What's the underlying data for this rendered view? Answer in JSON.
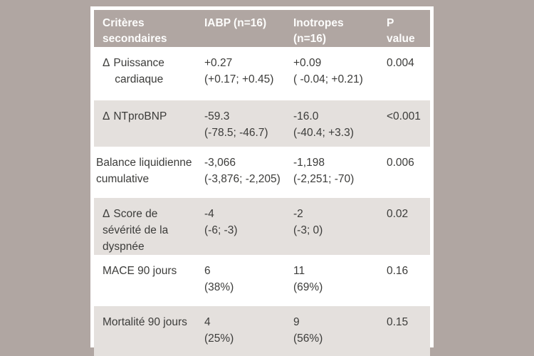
{
  "colors": {
    "page_background": "#b0a6a2",
    "card_background": "#ffffff",
    "header_background": "#b0a6a2",
    "shaded_row_background": "#e4e0dd",
    "body_text": "#3c3c3a",
    "header_text": "#ffffff"
  },
  "table": {
    "header": {
      "criteria": "Critères\nsecondaires",
      "iabp": "IABP (n=16)",
      "inotropes": "Inotropes\n(n=16)",
      "p_value": "P\nvalue"
    },
    "rows": [
      {
        "delta": "Δ",
        "label": "Puissance\n    cardiaque",
        "iabp": "+0.27\n(+0.17; +0.45)",
        "inotropes": "+0.09\n( -0.04; +0.21)",
        "p": "0.004"
      },
      {
        "delta": "Δ",
        "label": "NTproBNP",
        "iabp": "-59.3\n(-78.5; -46.7)",
        "inotropes": "-16.0\n(-40.4; +3.3)",
        "p": "<0.001"
      },
      {
        "delta": "",
        "label": "Balance liquidienne\ncumulative",
        "iabp": "-3,066\n(-3,876; -2,205)",
        "inotropes": "-1,198\n(-2,251; -70)",
        "p": "0.006"
      },
      {
        "delta": "Δ",
        "label": "Score de\nsévérité de la\ndyspnée",
        "iabp": "-4\n(-6; -3)",
        "inotropes": "-2\n(-3; 0)",
        "p": "0.02"
      },
      {
        "delta": "",
        "label": "MACE 90 jours",
        "iabp": "6\n(38%)",
        "inotropes": "11\n(69%)",
        "p": "0.16"
      },
      {
        "delta": "",
        "label": "Mortalité 90 jours",
        "iabp": "4\n(25%)",
        "inotropes": "9\n(56%)",
        "p": "0.15"
      }
    ]
  }
}
